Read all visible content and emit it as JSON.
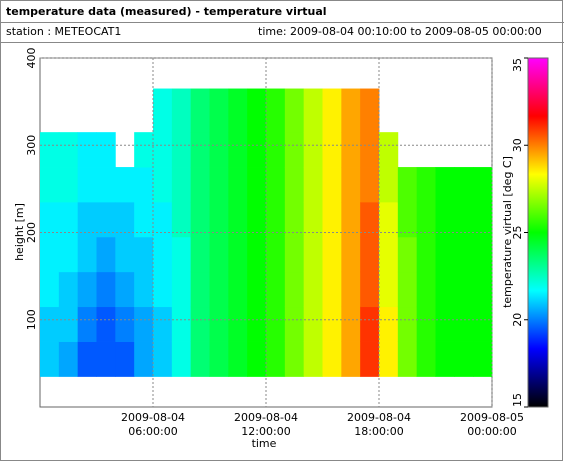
{
  "chart_data": {
    "type": "heatmap",
    "title": "temperature data (measured) - temperature virtual",
    "station": "station : METEOCAT1",
    "period": "time: 2009-08-04 00:10:00 to 2009-08-05 00:00:00",
    "x_label": "time",
    "y_label": "height [m]",
    "colorbar_label": "temperature virtual [deg C]",
    "xlim": [
      0,
      24
    ],
    "ylim": [
      0,
      400
    ],
    "xticks": [
      {
        "value": 6,
        "label": "2009-08-04 06:00:00"
      },
      {
        "value": 12,
        "label": "2009-08-04 12:00:00"
      },
      {
        "value": 18,
        "label": "2009-08-04 18:00:00"
      },
      {
        "value": 24,
        "label": "2009-08-05 00:00:00"
      }
    ],
    "yticks": [
      100,
      200,
      300,
      400
    ],
    "grid": true,
    "clim": [
      15,
      35
    ],
    "cticks": [
      15,
      20,
      25,
      30,
      35
    ],
    "colorscale": [
      "#000000",
      "#0000ff",
      "#00ffff",
      "#00ff00",
      "#ffff00",
      "#ff0000",
      "#ff00ff"
    ],
    "xbins": [
      0,
      1,
      2,
      3,
      4,
      5,
      6,
      7,
      8,
      9,
      10,
      11,
      12,
      13,
      14,
      15,
      16,
      17,
      18,
      19,
      20,
      21,
      22,
      23,
      24
    ],
    "ybins": [
      35,
      75,
      115,
      155,
      195,
      235,
      275,
      315,
      365
    ],
    "values": [
      [
        21,
        21,
        21.5,
        21.5,
        21.5,
        22,
        22,
        null
      ],
      [
        20.5,
        21,
        21,
        21.5,
        21.5,
        22,
        22,
        null
      ],
      [
        19.5,
        20,
        20.5,
        21,
        21,
        21.5,
        21.5,
        null
      ],
      [
        19.5,
        19.5,
        20,
        20.5,
        21,
        21.5,
        21.5,
        null
      ],
      [
        19.5,
        20,
        20.5,
        21,
        21,
        21.5,
        null,
        null
      ],
      [
        20.5,
        20.5,
        21,
        21,
        21.5,
        21.5,
        22,
        null
      ],
      [
        21,
        21,
        21.5,
        21.5,
        21.5,
        22,
        22,
        22
      ],
      [
        22,
        22,
        22,
        22,
        22.5,
        22.5,
        22.5,
        22.5
      ],
      [
        23.5,
        23.5,
        23.5,
        23.5,
        23.5,
        23.5,
        23.5,
        23.5
      ],
      [
        24,
        24,
        24,
        24,
        24,
        24,
        24,
        24
      ],
      [
        24.5,
        24.5,
        24.5,
        24.5,
        24.5,
        24.5,
        24.5,
        24.5
      ],
      [
        25,
        25,
        25,
        25,
        25,
        25,
        25,
        25
      ],
      [
        25.5,
        25.5,
        25.5,
        25.5,
        25.5,
        25.5,
        25.5,
        25.5
      ],
      [
        26.5,
        26.5,
        26.5,
        26.5,
        26.5,
        26.5,
        26.5,
        26.5
      ],
      [
        27.5,
        27.5,
        27.5,
        27.5,
        27.5,
        27.5,
        27.5,
        27.5
      ],
      [
        28.5,
        28.5,
        28.5,
        28.5,
        28.5,
        28.5,
        28.5,
        28.5
      ],
      [
        29.5,
        29.5,
        29.5,
        29.5,
        29.5,
        29.5,
        29.5,
        29.5
      ],
      [
        31,
        31,
        30.5,
        30.5,
        30.5,
        30,
        30,
        30
      ],
      [
        28.5,
        28.5,
        28,
        28,
        28,
        27.5,
        27.5,
        null
      ],
      [
        26.5,
        26.5,
        26.5,
        26.5,
        26,
        26,
        null,
        null
      ],
      [
        25.5,
        25.5,
        25.5,
        25.5,
        25.5,
        25.5,
        null,
        null
      ],
      [
        25,
        25,
        25,
        25,
        25,
        25,
        null,
        null
      ],
      [
        25,
        25,
        25,
        25,
        25,
        25,
        null,
        null
      ],
      [
        25,
        25,
        25,
        25,
        25,
        25,
        null,
        null
      ]
    ]
  }
}
